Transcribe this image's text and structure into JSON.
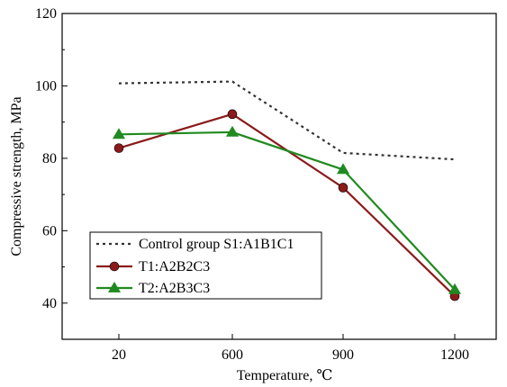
{
  "chart_data": {
    "type": "line",
    "title": "",
    "xlabel": "Temperature, ℃",
    "ylabel": "Compressive strength, MPa",
    "categories": [
      "20",
      "600",
      "900",
      "1200"
    ],
    "ylim": [
      30,
      120
    ],
    "yticks": [
      40,
      60,
      80,
      100,
      120
    ],
    "legend_position": "bottom-left",
    "grid": false,
    "series": [
      {
        "name": "Control group S1:A1B1C1",
        "values": [
          100.7,
          101.2,
          81.5,
          79.7
        ],
        "color": "#333333",
        "style": "dotted",
        "marker": "none"
      },
      {
        "name": "T1:A2B2C3",
        "values": [
          82.8,
          92.2,
          71.9,
          41.9
        ],
        "color": "#8b1a1a",
        "style": "solid",
        "marker": "circle"
      },
      {
        "name": "T2:A2B3C3",
        "values": [
          86.6,
          87.2,
          76.9,
          43.7
        ],
        "color": "#1f8a1f",
        "style": "solid",
        "marker": "triangle"
      }
    ]
  }
}
